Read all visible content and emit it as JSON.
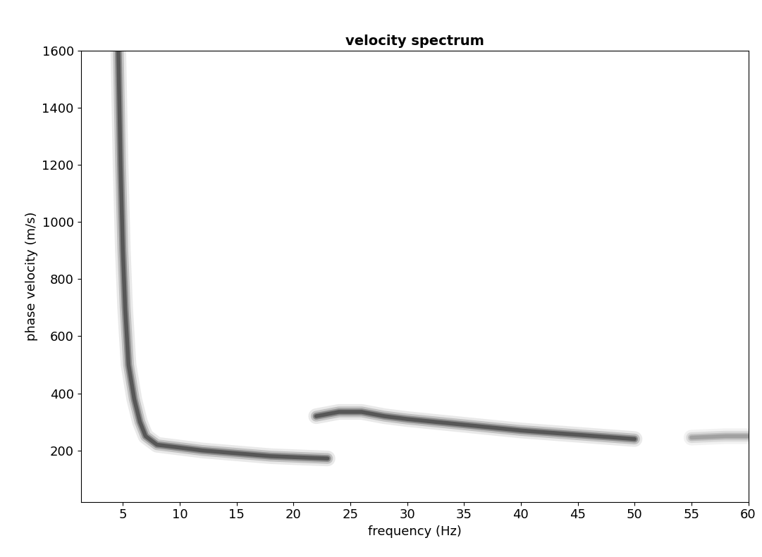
{
  "chart_data": {
    "type": "line",
    "title": "velocity spectrum",
    "x_label": "frequency (Hz)",
    "y_label": "phase velocity (m/s)",
    "xlim": [
      1.3,
      60
    ],
    "ylim": [
      20,
      1600
    ],
    "xticks": [
      5,
      10,
      15,
      20,
      25,
      30,
      35,
      40,
      45,
      50,
      55,
      60
    ],
    "yticks": [
      200,
      400,
      600,
      800,
      1000,
      1200,
      1400,
      1600
    ],
    "grid": false,
    "series": [
      {
        "color": "#4a4a4a",
        "x": [
          4.6,
          4.8,
          5.0,
          5.2,
          5.5,
          6.0,
          6.5,
          7.0,
          8.0,
          10.0,
          12.0,
          15.0,
          18.0,
          21.0,
          23.0
        ],
        "values": [
          1600,
          1200,
          900,
          700,
          500,
          380,
          300,
          250,
          220,
          210,
          200,
          190,
          180,
          175,
          172
        ]
      },
      {
        "color": "#4a4a4a",
        "x": [
          22,
          24,
          26,
          28,
          30,
          35,
          40,
          45,
          50
        ],
        "values": [
          320,
          335,
          335,
          320,
          310,
          290,
          270,
          255,
          240
        ]
      },
      {
        "color": "#9a9a9a",
        "x": [
          55,
          58,
          60
        ],
        "values": [
          245,
          250,
          250
        ]
      }
    ]
  }
}
